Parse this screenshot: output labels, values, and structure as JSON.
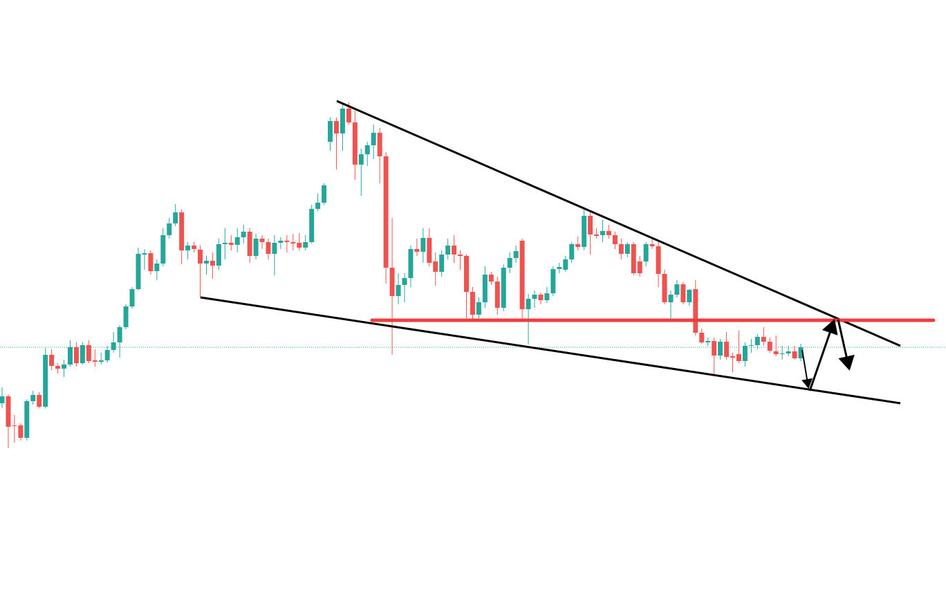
{
  "chart_data": {
    "type": "candlestick",
    "up_color": "#26a69a",
    "down_color": "#ef5350",
    "ylim": [
      134,
      1000
    ],
    "price_line": true,
    "series": [
      {
        "open": [
          417,
          427,
          385,
          385,
          367,
          420,
          429,
          412,
          487,
          471,
          467,
          473,
          498,
          475,
          501,
          479,
          477,
          479,
          494,
          505,
          527,
          557,
          582,
          632,
          634,
          608,
          619,
          660,
          677,
          693,
          638,
          645,
          639,
          619,
          623,
          616,
          647,
          649,
          646,
          657,
          665,
          630,
          655,
          650,
          633,
          649,
          652,
          650,
          649,
          642,
          650,
          698,
          707,
          795,
          825,
          807,
          843,
          823,
          762,
          777,
          790,
          808,
          774,
          613,
          572,
          588,
          598,
          640,
          636,
          656,
          622,
          607,
          632,
          645,
          632,
          630,
          578,
          545,
          563,
          603,
          593,
          555,
          613,
          627,
          652,
          553,
          568,
          574,
          566,
          576,
          611,
          610,
          625,
          647,
          643,
          688,
          661,
          660,
          666,
          660,
          647,
          633,
          647,
          622,
          622,
          647,
          644,
          604,
          563,
          574,
          589,
          563,
          582,
          519,
          505,
          507,
          486,
          506,
          485,
          488,
          478,
          500,
          501,
          513,
          506,
          492,
          488,
          489,
          492,
          482
        ],
        "high": [
          440,
          430,
          400,
          388,
          422,
          435,
          433,
          497,
          495,
          475,
          480,
          508,
          505,
          505,
          508,
          495,
          490,
          500,
          520,
          530,
          560,
          585,
          642,
          640,
          638,
          625,
          670,
          685,
          705,
          697,
          650,
          650,
          645,
          630,
          635,
          655,
          670,
          660,
          670,
          675,
          670,
          662,
          660,
          655,
          660,
          657,
          660,
          662,
          663,
          660,
          704,
          720,
          735,
          830,
          830,
          852,
          852,
          840,
          785,
          795,
          820,
          815,
          780,
          685,
          605,
          605,
          645,
          655,
          670,
          670,
          635,
          638,
          655,
          660,
          638,
          632,
          585,
          570,
          615,
          607,
          600,
          618,
          635,
          645,
          655,
          575,
          580,
          577,
          585,
          615,
          620,
          630,
          650,
          658,
          698,
          695,
          670,
          682,
          675,
          665,
          655,
          650,
          650,
          630,
          650,
          655,
          652,
          610,
          580,
          595,
          592,
          582,
          595,
          525,
          512,
          512,
          510,
          520,
          490,
          522,
          505,
          510,
          517,
          527,
          512,
          515,
          500,
          500,
          500,
          503
        ],
        "low": [
          410,
          352,
          360,
          363,
          363,
          415,
          410,
          410,
          465,
          460,
          455,
          470,
          470,
          473,
          475,
          470,
          473,
          476,
          490,
          483,
          524,
          554,
          580,
          610,
          603,
          595,
          615,
          655,
          673,
          618,
          625,
          635,
          570,
          603,
          597,
          610,
          625,
          638,
          635,
          648,
          620,
          625,
          640,
          625,
          602,
          640,
          635,
          638,
          638,
          638,
          648,
          695,
          704,
          782,
          755,
          782,
          820,
          740,
          717,
          760,
          770,
          735,
          590,
          487,
          560,
          563,
          585,
          630,
          620,
          615,
          587,
          600,
          625,
          620,
          610,
          540,
          538,
          540,
          555,
          588,
          545,
          550,
          605,
          620,
          535,
          502,
          555,
          560,
          562,
          572,
          605,
          607,
          620,
          638,
          638,
          632,
          655,
          650,
          655,
          640,
          625,
          628,
          602,
          600,
          615,
          640,
          585,
          560,
          538,
          570,
          560,
          558,
          515,
          503,
          500,
          460,
          480,
          480,
          462,
          475,
          470,
          490,
          495,
          500,
          490,
          485,
          480,
          485,
          480,
          478
        ],
        "close": [
          427,
          383,
          384,
          367,
          420,
          429,
          412,
          487,
          471,
          467,
          473,
          498,
          475,
          501,
          478,
          477,
          479,
          494,
          505,
          527,
          557,
          582,
          633,
          634,
          608,
          619,
          660,
          677,
          693,
          638,
          645,
          640,
          619,
          623,
          616,
          647,
          649,
          646,
          657,
          665,
          630,
          655,
          650,
          633,
          649,
          652,
          650,
          648,
          642,
          650,
          698,
          707,
          732,
          825,
          807,
          843,
          823,
          762,
          777,
          790,
          808,
          774,
          613,
          572,
          588,
          598,
          640,
          636,
          656,
          620,
          607,
          632,
          645,
          632,
          630,
          578,
          545,
          563,
          603,
          593,
          555,
          613,
          627,
          637,
          553,
          568,
          574,
          566,
          576,
          611,
          614,
          625,
          647,
          643,
          688,
          661,
          659,
          666,
          660,
          647,
          633,
          647,
          605,
          605,
          647,
          644,
          604,
          563,
          574,
          589,
          563,
          581,
          519,
          505,
          507,
          486,
          506,
          484,
          483,
          478,
          500,
          501,
          513,
          506,
          493,
          488,
          489,
          492,
          482,
          498
        ]
      }
    ]
  }
}
